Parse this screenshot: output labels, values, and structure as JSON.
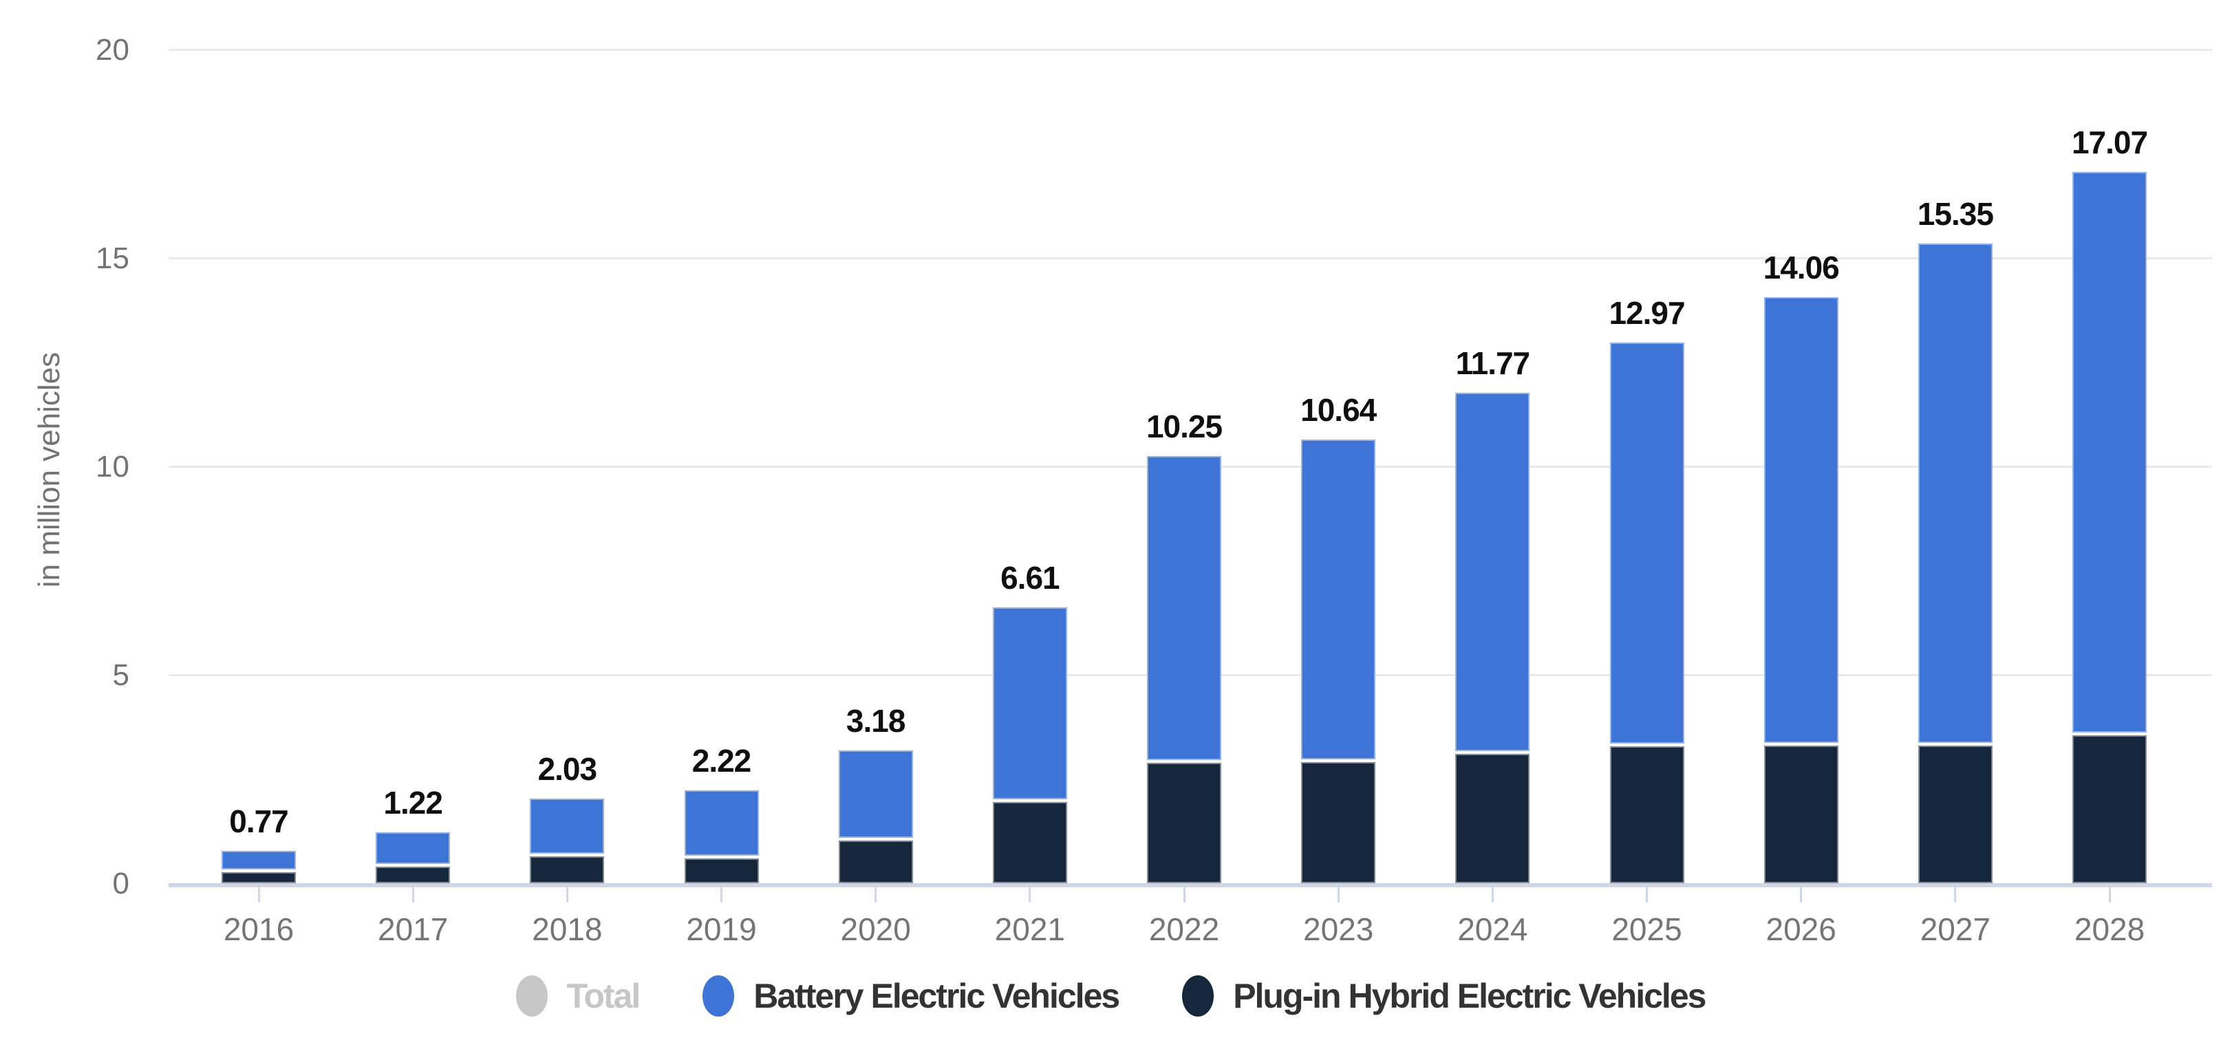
{
  "chart_data": {
    "type": "bar",
    "stacked": true,
    "title": "",
    "xlabel": "",
    "ylabel": "in million vehicles",
    "ylim": [
      0,
      20
    ],
    "yticks": [
      0,
      5,
      10,
      15,
      20
    ],
    "ytick_labels": [
      "0",
      "5",
      "10",
      "15",
      "20"
    ],
    "grid": "horizontal",
    "legend_position": "bottom",
    "categories": [
      "2016",
      "2017",
      "2018",
      "2019",
      "2020",
      "2021",
      "2022",
      "2023",
      "2024",
      "2025",
      "2026",
      "2027",
      "2028"
    ],
    "series": [
      {
        "name": "Plug-in Hybrid Electric Vehicles",
        "color": "#16273c",
        "values": [
          0.26,
          0.4,
          0.64,
          0.59,
          1.02,
          1.95,
          2.88,
          2.9,
          3.1,
          3.28,
          3.3,
          3.3,
          3.55
        ]
      },
      {
        "name": "Battery Electric Vehicles",
        "color": "#3d74d6",
        "values": [
          0.51,
          0.82,
          1.39,
          1.63,
          2.16,
          4.66,
          7.37,
          7.74,
          8.67,
          9.69,
          10.76,
          12.05,
          13.52
        ]
      }
    ],
    "totals": [
      0.77,
      1.22,
      2.03,
      2.22,
      3.18,
      6.61,
      10.25,
      10.64,
      11.77,
      12.97,
      14.06,
      15.35,
      17.07
    ],
    "total_labels": [
      "0.77",
      "1.22",
      "2.03",
      "2.22",
      "3.18",
      "6.61",
      "10.25",
      "10.64",
      "11.77",
      "12.97",
      "14.06",
      "15.35",
      "17.07"
    ]
  },
  "legend": {
    "items": [
      {
        "label": "Total",
        "color": "#c7c7c7",
        "state": "disabled"
      },
      {
        "label": "Battery Electric Vehicles",
        "color": "#3d74d6",
        "state": "active"
      },
      {
        "label": "Plug-in Hybrid Electric Vehicles",
        "color": "#16273c",
        "state": "active"
      }
    ]
  },
  "colors": {
    "bev": "#3d74d6",
    "phev": "#16273c",
    "disabled_gray": "#c7c7c7",
    "gridline": "#e9e9e9",
    "axis_line": "#cfd6e6",
    "axis_text": "#737373",
    "value_text": "#0f0f0f"
  }
}
